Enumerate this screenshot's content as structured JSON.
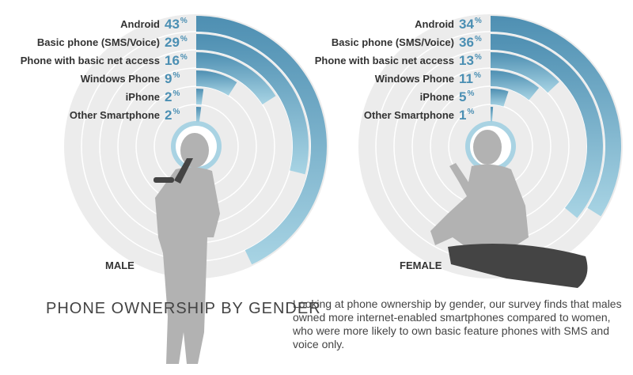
{
  "title": "PHONE OWNERSHIP BY GENDER",
  "description": "Looking at phone ownership by gender, our survey finds that males owned more internet-enabled smartphones compared to women, who were more likely to own basic feature phones with SMS and voice only.",
  "chart_data": [
    {
      "type": "radial_bar",
      "label": "MALE",
      "unit": "%",
      "categories": [
        "Android",
        "Basic phone (SMS/Voice)",
        "Phone with basic net access",
        "Windows Phone",
        "iPhone",
        "Other Smartphone"
      ],
      "values": [
        43,
        29,
        16,
        9,
        2,
        2
      ]
    },
    {
      "type": "radial_bar",
      "label": "FEMALE",
      "unit": "%",
      "categories": [
        "Android",
        "Basic phone (SMS/Voice)",
        "Phone with basic net access",
        "Windows Phone",
        "iPhone",
        "Other Smartphone"
      ],
      "values": [
        34,
        36,
        13,
        11,
        5,
        1
      ]
    }
  ]
}
